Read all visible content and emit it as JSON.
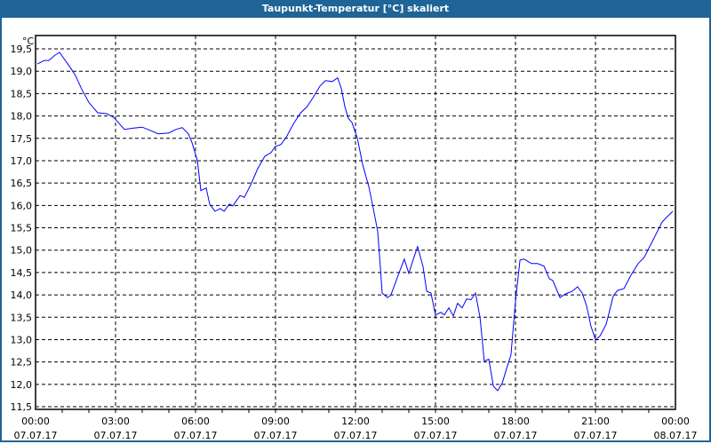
{
  "chart_data": {
    "type": "line",
    "title": "Taupunkt-Temperatur [°C] skaliert",
    "ylabel": "°C",
    "ylim": [
      11.5,
      19.5
    ],
    "yticks": [
      "19,5",
      "19,0",
      "18,5",
      "18,0",
      "17,5",
      "17,0",
      "16,5",
      "16,0",
      "15,5",
      "15,0",
      "14,5",
      "14,0",
      "13,5",
      "13,0",
      "12,5",
      "12,0",
      "11,5"
    ],
    "xlim_hours": [
      0,
      24
    ],
    "xticks": [
      {
        "time": "00:00",
        "date": "07.07.17"
      },
      {
        "time": "03:00",
        "date": "07.07.17"
      },
      {
        "time": "06:00",
        "date": "07.07.17"
      },
      {
        "time": "09:00",
        "date": "07.07.17"
      },
      {
        "time": "12:00",
        "date": "07.07.17"
      },
      {
        "time": "15:00",
        "date": "07.07.17"
      },
      {
        "time": "18:00",
        "date": "07.07.17"
      },
      {
        "time": "21:00",
        "date": "07.07.17"
      },
      {
        "time": "00:00",
        "date": "08.07.17"
      }
    ],
    "grid": true,
    "line_color": "#0000ff",
    "series": [
      {
        "name": "Taupunkt",
        "points": [
          [
            0.07,
            19.16
          ],
          [
            0.33,
            19.24
          ],
          [
            0.5,
            19.24
          ],
          [
            0.73,
            19.36
          ],
          [
            0.9,
            19.42
          ],
          [
            1.33,
            19.06
          ],
          [
            1.5,
            18.9
          ],
          [
            1.73,
            18.6
          ],
          [
            2.0,
            18.3
          ],
          [
            2.33,
            18.07
          ],
          [
            2.67,
            18.05
          ],
          [
            2.93,
            17.97
          ],
          [
            3.33,
            17.7
          ],
          [
            3.67,
            17.73
          ],
          [
            4.0,
            17.75
          ],
          [
            4.33,
            17.67
          ],
          [
            4.6,
            17.6
          ],
          [
            5.0,
            17.62
          ],
          [
            5.27,
            17.7
          ],
          [
            5.5,
            17.74
          ],
          [
            5.73,
            17.6
          ],
          [
            5.87,
            17.4
          ],
          [
            6.07,
            17.0
          ],
          [
            6.2,
            16.33
          ],
          [
            6.4,
            16.39
          ],
          [
            6.53,
            16.03
          ],
          [
            6.73,
            15.87
          ],
          [
            6.93,
            15.93
          ],
          [
            7.07,
            15.87
          ],
          [
            7.27,
            16.03
          ],
          [
            7.4,
            15.99
          ],
          [
            7.67,
            16.22
          ],
          [
            7.83,
            16.18
          ],
          [
            8.07,
            16.46
          ],
          [
            8.33,
            16.82
          ],
          [
            8.6,
            17.1
          ],
          [
            8.83,
            17.18
          ],
          [
            9.0,
            17.32
          ],
          [
            9.2,
            17.36
          ],
          [
            9.4,
            17.52
          ],
          [
            9.67,
            17.82
          ],
          [
            9.93,
            18.06
          ],
          [
            10.17,
            18.2
          ],
          [
            10.4,
            18.4
          ],
          [
            10.67,
            18.67
          ],
          [
            10.87,
            18.79
          ],
          [
            11.13,
            18.77
          ],
          [
            11.33,
            18.85
          ],
          [
            11.47,
            18.61
          ],
          [
            11.6,
            18.21
          ],
          [
            11.73,
            17.95
          ],
          [
            11.87,
            17.85
          ],
          [
            12.07,
            17.5
          ],
          [
            12.27,
            16.91
          ],
          [
            12.5,
            16.42
          ],
          [
            12.67,
            15.92
          ],
          [
            12.83,
            15.43
          ],
          [
            12.93,
            14.64
          ],
          [
            13.0,
            14.04
          ],
          [
            13.2,
            13.94
          ],
          [
            13.33,
            14.0
          ],
          [
            13.6,
            14.44
          ],
          [
            13.83,
            14.8
          ],
          [
            14.0,
            14.48
          ],
          [
            14.17,
            14.8
          ],
          [
            14.33,
            15.08
          ],
          [
            14.53,
            14.64
          ],
          [
            14.67,
            14.08
          ],
          [
            14.83,
            14.04
          ],
          [
            15.0,
            13.55
          ],
          [
            15.2,
            13.61
          ],
          [
            15.33,
            13.55
          ],
          [
            15.5,
            13.71
          ],
          [
            15.67,
            13.53
          ],
          [
            15.83,
            13.81
          ],
          [
            16.0,
            13.71
          ],
          [
            16.17,
            13.91
          ],
          [
            16.33,
            13.89
          ],
          [
            16.5,
            14.04
          ],
          [
            16.67,
            13.5
          ],
          [
            16.83,
            12.52
          ],
          [
            17.0,
            12.56
          ],
          [
            17.17,
            11.96
          ],
          [
            17.33,
            11.86
          ],
          [
            17.5,
            12.02
          ],
          [
            17.67,
            12.36
          ],
          [
            17.83,
            12.66
          ],
          [
            18.0,
            13.85
          ],
          [
            18.17,
            14.78
          ],
          [
            18.33,
            14.8
          ],
          [
            18.6,
            14.7
          ],
          [
            18.83,
            14.7
          ],
          [
            19.07,
            14.64
          ],
          [
            19.27,
            14.36
          ],
          [
            19.4,
            14.32
          ],
          [
            19.67,
            13.94
          ],
          [
            19.87,
            14.02
          ],
          [
            20.13,
            14.08
          ],
          [
            20.33,
            14.18
          ],
          [
            20.5,
            14.04
          ],
          [
            20.67,
            13.75
          ],
          [
            20.83,
            13.3
          ],
          [
            21.0,
            13.0
          ],
          [
            21.17,
            13.08
          ],
          [
            21.4,
            13.34
          ],
          [
            21.67,
            13.98
          ],
          [
            21.83,
            14.1
          ],
          [
            22.07,
            14.14
          ],
          [
            22.33,
            14.44
          ],
          [
            22.6,
            14.7
          ],
          [
            22.83,
            14.84
          ],
          [
            23.17,
            15.24
          ],
          [
            23.5,
            15.63
          ],
          [
            23.73,
            15.77
          ],
          [
            23.9,
            15.87
          ]
        ]
      }
    ]
  }
}
